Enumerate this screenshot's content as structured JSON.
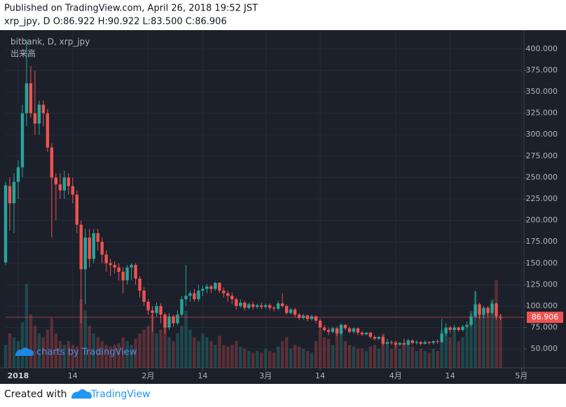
{
  "header": {
    "published": "Published on TradingView.com, April 26, 2018 19:52 JST",
    "ohlc": "xrp_jpy, D O:86.922 H:90.922 L:83.500 C:86.906"
  },
  "chart_data": {
    "type": "candlestick",
    "title": "bitbank, D, xrp_jpy",
    "volume_title": "出来高",
    "up_color": "#26a69a",
    "down_color": "#ef5350",
    "grid": true,
    "x": [
      -3,
      -2,
      -1,
      0,
      1,
      2,
      3,
      4,
      5,
      6,
      7,
      8,
      9,
      10,
      11,
      12,
      13,
      14,
      15,
      16,
      17,
      18,
      19,
      20,
      21,
      22,
      23,
      24,
      25,
      26,
      27,
      28,
      29,
      30,
      31,
      32,
      33,
      34,
      35,
      36,
      37,
      38,
      39,
      40,
      41,
      42,
      43,
      44,
      45,
      46,
      47,
      48,
      49,
      50,
      51,
      52,
      53,
      54,
      55,
      56,
      57,
      58,
      59,
      60,
      61,
      62,
      63,
      64,
      65,
      66,
      67,
      68,
      69,
      70,
      71,
      72,
      73,
      74,
      75,
      76,
      77,
      78,
      79,
      80,
      81,
      82,
      83,
      84,
      85,
      86,
      87,
      88,
      89,
      90,
      91,
      92,
      93,
      94,
      95,
      96,
      97,
      98,
      99,
      100,
      101,
      102,
      103,
      104,
      105,
      106,
      107,
      108,
      109,
      110,
      111,
      112,
      113,
      114,
      115
    ],
    "open": [
      151,
      240,
      220,
      245,
      262,
      325,
      360,
      325,
      313,
      335,
      325,
      285,
      250,
      242,
      235,
      250,
      240,
      230,
      195,
      143,
      180,
      155,
      185,
      175,
      160,
      150,
      148,
      145,
      140,
      130,
      145,
      148,
      132,
      118,
      105,
      95,
      92,
      100,
      90,
      75,
      88,
      80,
      90,
      108,
      112,
      115,
      108,
      118,
      120,
      123,
      120,
      127,
      118,
      115,
      112,
      108,
      100,
      104,
      98,
      102,
      99,
      101,
      99,
      101,
      98,
      97,
      103,
      100,
      92,
      96,
      90,
      86,
      89,
      85,
      88,
      83,
      75,
      72,
      70,
      74,
      68,
      78,
      74,
      70,
      74,
      69,
      67,
      69,
      64,
      62,
      64,
      56,
      58,
      57,
      55,
      57,
      55,
      60,
      57,
      58,
      56,
      58,
      57,
      59,
      58,
      68,
      75,
      72,
      75,
      72,
      76,
      78,
      88,
      102,
      90,
      98,
      92,
      103,
      86.922
    ],
    "high": [
      245,
      250,
      255,
      270,
      335,
      410,
      380,
      375,
      340,
      340,
      330,
      290,
      255,
      255,
      258,
      255,
      250,
      235,
      200,
      190,
      190,
      190,
      190,
      180,
      165,
      155,
      152,
      150,
      145,
      148,
      150,
      150,
      135,
      122,
      108,
      100,
      104,
      103,
      92,
      92,
      90,
      95,
      112,
      148,
      118,
      120,
      125,
      124,
      126,
      125,
      128,
      128,
      122,
      118,
      116,
      110,
      108,
      106,
      104,
      105,
      103,
      104,
      103,
      103,
      100,
      106,
      115,
      102,
      98,
      98,
      92,
      91,
      90,
      90,
      89,
      85,
      78,
      75,
      76,
      76,
      80,
      79,
      76,
      75,
      75,
      71,
      70,
      70,
      66,
      65,
      66,
      62,
      60,
      59,
      58,
      62,
      62,
      61,
      60,
      59,
      60,
      59,
      60,
      61,
      85,
      80,
      77,
      78,
      76,
      78,
      82,
      92,
      118,
      104,
      100,
      100,
      106,
      104,
      90.922
    ],
    "low": [
      148,
      188,
      185,
      225,
      250,
      310,
      320,
      300,
      300,
      310,
      280,
      180,
      200,
      225,
      225,
      230,
      220,
      185,
      80,
      102,
      145,
      150,
      165,
      150,
      140,
      135,
      138,
      130,
      115,
      125,
      130,
      125,
      110,
      100,
      90,
      70,
      88,
      80,
      68,
      72,
      76,
      78,
      88,
      100,
      105,
      105,
      105,
      112,
      115,
      115,
      118,
      115,
      110,
      105,
      102,
      96,
      98,
      95,
      96,
      96,
      97,
      96,
      97,
      95,
      94,
      95,
      98,
      90,
      90,
      87,
      84,
      84,
      82,
      83,
      80,
      72,
      70,
      66,
      68,
      65,
      66,
      72,
      68,
      68,
      66,
      65,
      66,
      62,
      60,
      60,
      54,
      54,
      55,
      52,
      53,
      54,
      54,
      55,
      55,
      54,
      55,
      55,
      55,
      56,
      57,
      65,
      68,
      70,
      70,
      70,
      74,
      76,
      86,
      85,
      86,
      88,
      90,
      84,
      83.5
    ],
    "close": [
      241,
      220,
      245,
      262,
      325,
      360,
      325,
      313,
      335,
      325,
      285,
      250,
      242,
      235,
      250,
      240,
      230,
      195,
      143,
      180,
      155,
      185,
      175,
      160,
      150,
      148,
      145,
      140,
      130,
      145,
      148,
      132,
      118,
      105,
      95,
      92,
      100,
      90,
      75,
      88,
      80,
      90,
      108,
      112,
      115,
      108,
      118,
      120,
      123,
      120,
      127,
      118,
      115,
      112,
      108,
      100,
      104,
      98,
      102,
      99,
      101,
      99,
      101,
      98,
      97,
      103,
      100,
      92,
      96,
      90,
      86,
      89,
      85,
      88,
      83,
      75,
      72,
      70,
      74,
      68,
      78,
      74,
      70,
      74,
      69,
      67,
      69,
      64,
      62,
      64,
      56,
      58,
      57,
      55,
      57,
      55,
      60,
      57,
      58,
      56,
      58,
      57,
      59,
      58,
      68,
      75,
      72,
      75,
      72,
      76,
      78,
      88,
      102,
      90,
      98,
      92,
      103,
      88,
      86.906
    ],
    "volume": [
      30,
      45,
      40,
      35,
      60,
      110,
      70,
      55,
      45,
      40,
      50,
      65,
      45,
      35,
      30,
      35,
      30,
      28,
      90,
      75,
      55,
      45,
      40,
      35,
      30,
      28,
      30,
      32,
      40,
      35,
      30,
      38,
      45,
      50,
      55,
      70,
      45,
      50,
      60,
      40,
      35,
      45,
      55,
      75,
      50,
      40,
      35,
      45,
      40,
      35,
      30,
      42,
      30,
      28,
      30,
      35,
      28,
      25,
      22,
      20,
      22,
      20,
      25,
      22,
      20,
      28,
      35,
      40,
      25,
      30,
      28,
      25,
      22,
      20,
      35,
      50,
      40,
      38,
      30,
      45,
      55,
      35,
      30,
      28,
      25,
      25,
      22,
      28,
      30,
      25,
      45,
      30,
      25,
      35,
      25,
      30,
      35,
      28,
      22,
      25,
      22,
      20,
      25,
      22,
      50,
      45,
      40,
      48,
      35,
      40,
      55,
      75,
      100,
      80,
      70,
      75,
      90,
      115,
      70
    ],
    "last_price": 86.906,
    "last_price_color": "#ef5350",
    "xlim": [
      -3,
      120.6
    ],
    "xticks": [
      {
        "value": 0,
        "label": "2018"
      },
      {
        "value": 13,
        "label": "14"
      },
      {
        "value": 31,
        "label": "2月"
      },
      {
        "value": 44,
        "label": "14"
      },
      {
        "value": 59,
        "label": "3月"
      },
      {
        "value": 72,
        "label": "14"
      },
      {
        "value": 90,
        "label": "4月"
      },
      {
        "value": 103,
        "label": "14"
      },
      {
        "value": 120,
        "label": "5月"
      }
    ],
    "ylim": [
      28,
      422
    ],
    "yticks": [
      {
        "value": 50,
        "label": "50.000"
      },
      {
        "value": 75,
        "label": "75.000"
      },
      {
        "value": 100,
        "label": "100.000"
      },
      {
        "value": 125,
        "label": "125.000"
      },
      {
        "value": 150,
        "label": "150.000"
      },
      {
        "value": 175,
        "label": "175.000"
      },
      {
        "value": 200,
        "label": "200.000"
      },
      {
        "value": 225,
        "label": "225.000"
      },
      {
        "value": 250,
        "label": "250.000"
      },
      {
        "value": 275,
        "label": "275.000"
      },
      {
        "value": 300,
        "label": "300.000"
      },
      {
        "value": 325,
        "label": "325.000"
      },
      {
        "value": 350,
        "label": "350.000"
      },
      {
        "value": 375,
        "label": "375.000"
      },
      {
        "value": 400,
        "label": "400.000"
      }
    ]
  },
  "watermark": "charts by TradingView",
  "footer": {
    "created": "Created with",
    "brand": "TradingView"
  }
}
